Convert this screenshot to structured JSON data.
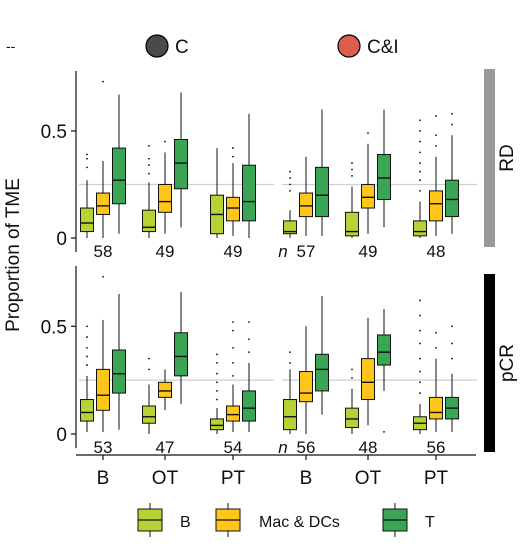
{
  "chart_data": {
    "type": "boxplot",
    "ylabel": "Proportion of TME",
    "y_ticks": [
      "0",
      "0.5"
    ],
    "ylim": [
      0,
      0.78
    ],
    "reference_line": 0.25,
    "n_label": "n",
    "top_dash": "--",
    "column_groups": [
      {
        "key": "C",
        "label": "C",
        "color": "#4a4a4a"
      },
      {
        "key": "CI",
        "label": "C&I",
        "color": "#dc5f4e"
      }
    ],
    "row_groups": [
      {
        "key": "RD",
        "label": "RD",
        "strip_color": "#999999"
      },
      {
        "key": "pCR",
        "label": "pCR",
        "strip_color": "#000000"
      }
    ],
    "x_categories": [
      "B",
      "OT",
      "PT"
    ],
    "series": [
      {
        "name": "B",
        "color": "#b5d334"
      },
      {
        "name": "Mac & DCs",
        "color": "#ffc61a"
      },
      {
        "name": "T",
        "color": "#3aa655"
      }
    ],
    "panels": [
      {
        "row": "RD",
        "col": "C",
        "n": [
          "58",
          "49",
          "49"
        ],
        "boxes": [
          [
            {
              "min": 0,
              "q1": 0.03,
              "median": 0.07,
              "q3": 0.14,
              "max": 0.27,
              "outliers": [
                0.33,
                0.37,
                0.39
              ]
            },
            {
              "min": 0,
              "q1": 0.11,
              "median": 0.15,
              "q3": 0.21,
              "max": 0.36,
              "outliers": [
                0.73
              ]
            },
            {
              "min": 0.02,
              "q1": 0.16,
              "median": 0.27,
              "q3": 0.42,
              "max": 0.67,
              "outliers": []
            }
          ],
          [
            {
              "min": 0,
              "q1": 0.03,
              "median": 0.05,
              "q3": 0.13,
              "max": 0.26,
              "outliers": [
                0.3,
                0.34,
                0.37,
                0.43
              ]
            },
            {
              "min": 0.02,
              "q1": 0.12,
              "median": 0.17,
              "q3": 0.25,
              "max": 0.4,
              "outliers": [
                0.45
              ]
            },
            {
              "min": 0.05,
              "q1": 0.23,
              "median": 0.35,
              "q3": 0.46,
              "max": 0.68,
              "outliers": []
            }
          ],
          [
            {
              "min": 0,
              "q1": 0.02,
              "median": 0.11,
              "q3": 0.2,
              "max": 0.42,
              "outliers": []
            },
            {
              "min": 0.01,
              "q1": 0.08,
              "median": 0.14,
              "q3": 0.19,
              "max": 0.35,
              "outliers": [
                0.38,
                0.42
              ]
            },
            {
              "min": 0,
              "q1": 0.08,
              "median": 0.17,
              "q3": 0.34,
              "max": 0.58,
              "outliers": []
            }
          ]
        ]
      },
      {
        "row": "RD",
        "col": "CI",
        "n": [
          "57",
          "49",
          "48"
        ],
        "boxes": [
          [
            {
              "min": 0,
              "q1": 0.02,
              "median": 0.03,
              "q3": 0.08,
              "max": 0.13,
              "outliers": [
                0.22,
                0.25,
                0.28,
                0.31
              ]
            },
            {
              "min": 0.01,
              "q1": 0.1,
              "median": 0.15,
              "q3": 0.21,
              "max": 0.38,
              "outliers": []
            },
            {
              "min": 0.01,
              "q1": 0.1,
              "median": 0.2,
              "q3": 0.33,
              "max": 0.6,
              "outliers": []
            }
          ],
          [
            {
              "min": 0,
              "q1": 0.01,
              "median": 0.03,
              "q3": 0.12,
              "max": 0.24,
              "outliers": [
                0.29,
                0.32,
                0.35
              ]
            },
            {
              "min": 0.02,
              "q1": 0.14,
              "median": 0.19,
              "q3": 0.25,
              "max": 0.44,
              "outliers": [
                0.49
              ]
            },
            {
              "min": 0.05,
              "q1": 0.18,
              "median": 0.28,
              "q3": 0.39,
              "max": 0.6,
              "outliers": []
            }
          ],
          [
            {
              "min": 0,
              "q1": 0.01,
              "median": 0.03,
              "q3": 0.08,
              "max": 0.17,
              "outliers": [
                0.22,
                0.27,
                0.31,
                0.35,
                0.4,
                0.45,
                0.5,
                0.55
              ]
            },
            {
              "min": 0.01,
              "q1": 0.08,
              "median": 0.16,
              "q3": 0.22,
              "max": 0.38,
              "outliers": [
                0.43,
                0.48,
                0.57
              ]
            },
            {
              "min": 0.02,
              "q1": 0.1,
              "median": 0.18,
              "q3": 0.27,
              "max": 0.48,
              "outliers": [
                0.53,
                0.58
              ]
            }
          ]
        ]
      },
      {
        "row": "pCR",
        "col": "C",
        "n": [
          "53",
          "47",
          "54"
        ],
        "boxes": [
          [
            {
              "min": 0.01,
              "q1": 0.06,
              "median": 0.1,
              "q3": 0.16,
              "max": 0.27,
              "outliers": [
                0.32,
                0.36,
                0.4,
                0.45,
                0.5
              ]
            },
            {
              "min": 0.01,
              "q1": 0.11,
              "median": 0.18,
              "q3": 0.3,
              "max": 0.53,
              "outliers": [
                0.73
              ]
            },
            {
              "min": 0.02,
              "q1": 0.19,
              "median": 0.28,
              "q3": 0.39,
              "max": 0.65,
              "outliers": []
            }
          ],
          [
            {
              "min": 0,
              "q1": 0.05,
              "median": 0.08,
              "q3": 0.13,
              "max": 0.23,
              "outliers": [
                0.3,
                0.35
              ]
            },
            {
              "min": 0.11,
              "q1": 0.17,
              "median": 0.2,
              "q3": 0.24,
              "max": 0.3,
              "outliers": []
            },
            {
              "min": 0.14,
              "q1": 0.27,
              "median": 0.36,
              "q3": 0.47,
              "max": 0.66,
              "outliers": []
            }
          ],
          [
            {
              "min": 0,
              "q1": 0.02,
              "median": 0.04,
              "q3": 0.07,
              "max": 0.12,
              "outliers": [
                0.16,
                0.2,
                0.24,
                0.28,
                0.33,
                0.37
              ]
            },
            {
              "min": 0.01,
              "q1": 0.06,
              "median": 0.09,
              "q3": 0.13,
              "max": 0.23,
              "outliers": [
                0.27,
                0.33,
                0.4,
                0.48,
                0.52
              ]
            },
            {
              "min": 0.01,
              "q1": 0.06,
              "median": 0.12,
              "q3": 0.2,
              "max": 0.33,
              "outliers": [
                0.38,
                0.44,
                0.52
              ]
            }
          ]
        ]
      },
      {
        "row": "pCR",
        "col": "CI",
        "n": [
          "56",
          "48",
          "56"
        ],
        "boxes": [
          [
            {
              "min": 0,
              "q1": 0.02,
              "median": 0.08,
              "q3": 0.16,
              "max": 0.3,
              "outliers": [
                0.33,
                0.38
              ]
            },
            {
              "min": 0,
              "q1": 0.15,
              "median": 0.19,
              "q3": 0.29,
              "max": 0.5,
              "outliers": []
            },
            {
              "min": 0.09,
              "q1": 0.2,
              "median": 0.3,
              "q3": 0.37,
              "max": 0.64,
              "outliers": []
            }
          ],
          [
            {
              "min": 0,
              "q1": 0.03,
              "median": 0.07,
              "q3": 0.12,
              "max": 0.21,
              "outliers": [
                0.26,
                0.3
              ]
            },
            {
              "min": 0.04,
              "q1": 0.16,
              "median": 0.24,
              "q3": 0.35,
              "max": 0.54,
              "outliers": []
            },
            {
              "min": 0.2,
              "q1": 0.32,
              "median": 0.38,
              "q3": 0.46,
              "max": 0.58,
              "outliers": [
                0.01
              ]
            }
          ],
          [
            {
              "min": 0,
              "q1": 0.02,
              "median": 0.05,
              "q3": 0.08,
              "max": 0.14,
              "outliers": [
                0.19,
                0.24,
                0.29,
                0.35,
                0.42,
                0.48,
                0.55,
                0.62
              ]
            },
            {
              "min": 0.01,
              "q1": 0.07,
              "median": 0.1,
              "q3": 0.17,
              "max": 0.35,
              "outliers": [
                0.4,
                0.47
              ]
            },
            {
              "min": 0.01,
              "q1": 0.07,
              "median": 0.12,
              "q3": 0.17,
              "max": 0.28,
              "outliers": [
                0.35,
                0.42,
                0.5
              ]
            }
          ]
        ]
      }
    ]
  }
}
